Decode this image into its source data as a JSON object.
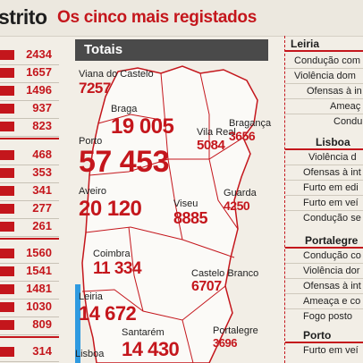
{
  "header": {
    "title": "strito",
    "subtitle": "Os cinco mais registados"
  },
  "left_values": [
    "2434",
    "1657",
    "1496",
    "937",
    "823",
    "468",
    "353",
    "341",
    "277",
    "261",
    "1560",
    "1541",
    "1481",
    "1030",
    "809",
    "314"
  ],
  "map": {
    "heading": "Totais",
    "cities": [
      {
        "name": "Viana do Castelo",
        "value": "7257"
      },
      {
        "name": "Braga",
        "value": "19 005"
      },
      {
        "name": "Vila Real",
        "value": "5084"
      },
      {
        "name": "Bragança",
        "value": "3656"
      },
      {
        "name": "Porto",
        "value": "57 453"
      },
      {
        "name": "Aveiro",
        "value": "20 120"
      },
      {
        "name": "Viseu",
        "value": "8885"
      },
      {
        "name": "Guarda",
        "value": "4250"
      },
      {
        "name": "Coimbra",
        "value": "11 334"
      },
      {
        "name": "Castelo Branco",
        "value": "6707"
      },
      {
        "name": "Leiria",
        "value": "14 672"
      },
      {
        "name": "Santarém",
        "value": "14 430"
      },
      {
        "name": "Portalegre",
        "value": "3696"
      },
      {
        "name": "Lisboa",
        "value": ""
      }
    ]
  },
  "districts": [
    {
      "name": "Leiria",
      "crimes": [
        "Condução com",
        "Violência dom",
        "Ofensas à in",
        "Ameaç",
        "Condu"
      ]
    },
    {
      "name": "Lisboa",
      "crimes": [
        "Violência d",
        "Ofensas à int",
        "Furto em edi",
        "Furto em veí",
        "Condução se"
      ]
    },
    {
      "name": "Portalegre",
      "crimes": [
        "Condução co",
        "Violência dor",
        "Ofensas à int",
        "Ameaça e co",
        "Fogo posto"
      ]
    },
    {
      "name": "Porto",
      "crimes": [
        "Furto em veí"
      ]
    }
  ],
  "colors": {
    "accent": "#c4161c",
    "header_bg": "#4a4a4a",
    "map_fill": "#fbfaf7",
    "sea": "#2f9ae0"
  }
}
